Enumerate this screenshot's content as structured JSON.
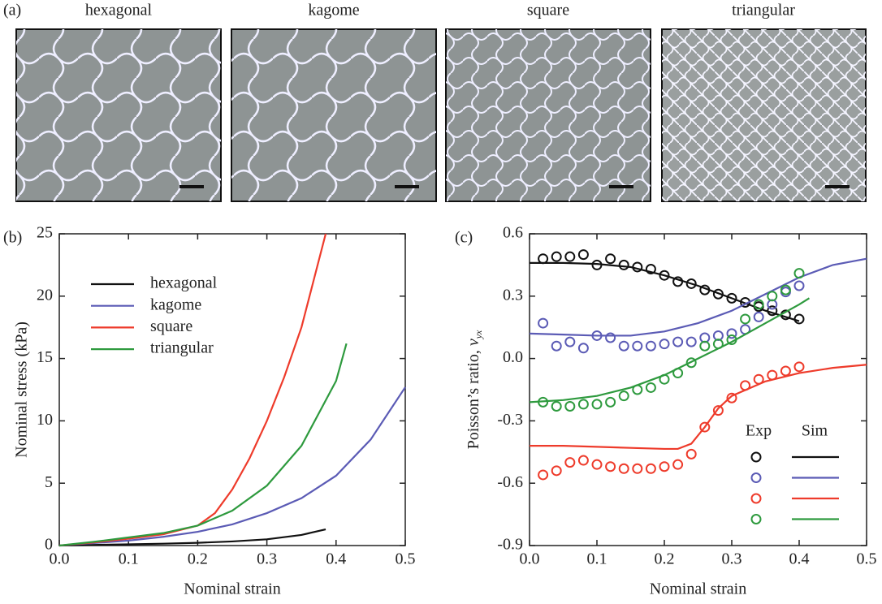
{
  "panel_labels": [
    "(a)",
    "(b)",
    "(c)"
  ],
  "images": [
    {
      "label": "hexagonal"
    },
    {
      "label": "kagome"
    },
    {
      "label": "square"
    },
    {
      "label": "triangular"
    }
  ],
  "chart_data": [
    {
      "type": "line",
      "x_label": "Nominal strain",
      "y_label": "Nominal stress (kPa)",
      "xlim": [
        0,
        0.5
      ],
      "xticks": [
        {
          "value": 0,
          "label": "0.0"
        },
        0.1,
        0.2,
        0.3,
        0.4,
        0.5
      ],
      "ylim": [
        0,
        25
      ],
      "yticks": [
        0,
        5,
        10,
        15,
        20,
        25
      ],
      "series": [
        {
          "name": "hexagonal",
          "color": "#111111",
          "x": [
            0,
            0.05,
            0.1,
            0.15,
            0.2,
            0.25,
            0.3,
            0.35,
            0.385
          ],
          "values": [
            0,
            0.05,
            0.1,
            0.15,
            0.22,
            0.33,
            0.5,
            0.85,
            1.3
          ]
        },
        {
          "name": "kagome",
          "color": "#5b5bb5",
          "x": [
            0,
            0.05,
            0.1,
            0.15,
            0.2,
            0.25,
            0.3,
            0.35,
            0.4,
            0.45,
            0.5
          ],
          "values": [
            0,
            0.2,
            0.4,
            0.7,
            1.1,
            1.7,
            2.6,
            3.8,
            5.6,
            8.5,
            12.7
          ]
        },
        {
          "name": "square",
          "color": "#ee3b2b",
          "x": [
            0,
            0.05,
            0.1,
            0.15,
            0.2,
            0.225,
            0.25,
            0.275,
            0.3,
            0.325,
            0.35,
            0.385
          ],
          "values": [
            0,
            0.25,
            0.55,
            0.9,
            1.6,
            2.6,
            4.5,
            7,
            10,
            13.5,
            17.5,
            25
          ]
        },
        {
          "name": "triangular",
          "color": "#2e9a3e",
          "x": [
            0,
            0.05,
            0.1,
            0.15,
            0.2,
            0.25,
            0.3,
            0.35,
            0.4,
            0.415
          ],
          "values": [
            0,
            0.3,
            0.65,
            1.0,
            1.6,
            2.8,
            4.8,
            8,
            13.2,
            16.2
          ]
        }
      ]
    },
    {
      "type": "scatter_line",
      "x_label": "Nominal strain",
      "y_label": {
        "text": "Poisson’s ratio, ",
        "symbol": "v",
        "subscript": "yx"
      },
      "legend_headers": [
        "Exp",
        "Sim"
      ],
      "xlim": [
        0,
        0.5
      ],
      "xticks": [
        {
          "value": 0,
          "label": "0.0"
        },
        0.1,
        0.2,
        0.3,
        0.4,
        0.5
      ],
      "ylim": [
        -0.9,
        0.6
      ],
      "yticks": [
        -0.9,
        -0.6,
        -0.3,
        {
          "value": 0,
          "label": "0.0"
        },
        0.3,
        0.6
      ],
      "series": [
        {
          "color": "#111111",
          "exp_x": [
            0.02,
            0.04,
            0.06,
            0.08,
            0.1,
            0.12,
            0.14,
            0.16,
            0.18,
            0.2,
            0.22,
            0.24,
            0.26,
            0.28,
            0.3,
            0.32,
            0.34,
            0.36,
            0.38,
            0.4
          ],
          "exp_values": [
            0.48,
            0.49,
            0.49,
            0.5,
            0.45,
            0.48,
            0.45,
            0.44,
            0.43,
            0.4,
            0.37,
            0.36,
            0.33,
            0.31,
            0.29,
            0.27,
            0.25,
            0.23,
            0.21,
            0.19
          ],
          "sim_x": [
            0,
            0.05,
            0.1,
            0.15,
            0.2,
            0.25,
            0.3,
            0.35,
            0.4
          ],
          "sim_values": [
            0.46,
            0.46,
            0.455,
            0.44,
            0.4,
            0.35,
            0.29,
            0.23,
            0.18
          ]
        },
        {
          "color": "#5b5bb5",
          "exp_x": [
            0.02,
            0.04,
            0.06,
            0.08,
            0.1,
            0.12,
            0.14,
            0.16,
            0.18,
            0.2,
            0.22,
            0.24,
            0.26,
            0.28,
            0.3,
            0.32,
            0.34,
            0.36,
            0.38,
            0.4
          ],
          "exp_values": [
            0.17,
            0.06,
            0.08,
            0.05,
            0.11,
            0.1,
            0.06,
            0.06,
            0.06,
            0.07,
            0.08,
            0.08,
            0.1,
            0.11,
            0.12,
            0.14,
            0.2,
            0.26,
            0.32,
            0.35
          ],
          "sim_x": [
            0,
            0.05,
            0.1,
            0.15,
            0.2,
            0.25,
            0.3,
            0.35,
            0.4,
            0.45,
            0.5
          ],
          "sim_values": [
            0.12,
            0.115,
            0.11,
            0.11,
            0.13,
            0.17,
            0.23,
            0.31,
            0.39,
            0.45,
            0.48
          ]
        },
        {
          "color": "#ee3b2b",
          "exp_x": [
            0.02,
            0.04,
            0.06,
            0.08,
            0.1,
            0.12,
            0.14,
            0.16,
            0.18,
            0.2,
            0.22,
            0.24,
            0.26,
            0.28,
            0.3,
            0.32,
            0.34,
            0.36,
            0.38,
            0.4
          ],
          "exp_values": [
            -0.56,
            -0.54,
            -0.5,
            -0.49,
            -0.51,
            -0.52,
            -0.53,
            -0.53,
            -0.53,
            -0.52,
            -0.51,
            -0.46,
            -0.33,
            -0.25,
            -0.19,
            -0.13,
            -0.1,
            -0.08,
            -0.06,
            -0.04
          ],
          "sim_x": [
            0,
            0.05,
            0.1,
            0.15,
            0.2,
            0.22,
            0.24,
            0.26,
            0.28,
            0.3,
            0.35,
            0.4,
            0.45,
            0.5
          ],
          "sim_values": [
            -0.42,
            -0.42,
            -0.425,
            -0.43,
            -0.435,
            -0.435,
            -0.41,
            -0.33,
            -0.24,
            -0.18,
            -0.11,
            -0.07,
            -0.045,
            -0.03
          ]
        },
        {
          "color": "#2e9a3e",
          "exp_x": [
            0.02,
            0.04,
            0.06,
            0.08,
            0.1,
            0.12,
            0.14,
            0.16,
            0.18,
            0.2,
            0.22,
            0.24,
            0.26,
            0.28,
            0.3,
            0.32,
            0.34,
            0.36,
            0.38,
            0.4
          ],
          "exp_values": [
            -0.21,
            -0.23,
            -0.23,
            -0.22,
            -0.22,
            -0.21,
            -0.18,
            -0.15,
            -0.14,
            -0.1,
            -0.07,
            -0.02,
            0.06,
            0.07,
            0.09,
            0.19,
            0.26,
            0.3,
            0.33,
            0.41
          ],
          "sim_x": [
            0,
            0.05,
            0.1,
            0.15,
            0.2,
            0.25,
            0.3,
            0.35,
            0.4,
            0.415
          ],
          "sim_values": [
            -0.21,
            -0.2,
            -0.18,
            -0.14,
            -0.08,
            0,
            0.08,
            0.17,
            0.26,
            0.29
          ]
        }
      ]
    }
  ]
}
